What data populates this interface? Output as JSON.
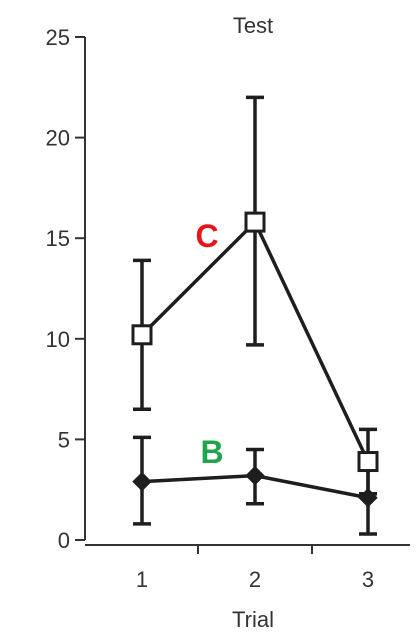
{
  "chart_data": {
    "type": "line",
    "title": "Test",
    "xlabel": "Trial",
    "ylabel": "",
    "x": [
      1,
      2,
      3
    ],
    "xticks": [
      "1",
      "2",
      "3"
    ],
    "ylim": [
      0,
      25
    ],
    "yticks": [
      "0",
      "5",
      "10",
      "15",
      "20",
      "25"
    ],
    "grid": false,
    "series": [
      {
        "name": "C",
        "marker": "open-square",
        "label_color": "#e8141c",
        "values": [
          10.2,
          15.8,
          3.9
        ],
        "error_upper": [
          13.9,
          22.0,
          5.5
        ],
        "error_lower": [
          6.5,
          9.7,
          2.3
        ]
      },
      {
        "name": "B",
        "marker": "filled-diamond",
        "label_color": "#1fa64a",
        "values": [
          2.9,
          3.2,
          2.1
        ],
        "error_upper": [
          5.1,
          4.5,
          3.9
        ],
        "error_lower": [
          0.8,
          1.8,
          0.3
        ]
      }
    ],
    "colors": {
      "line": "#1e1e1e",
      "axis": "#333333"
    }
  }
}
